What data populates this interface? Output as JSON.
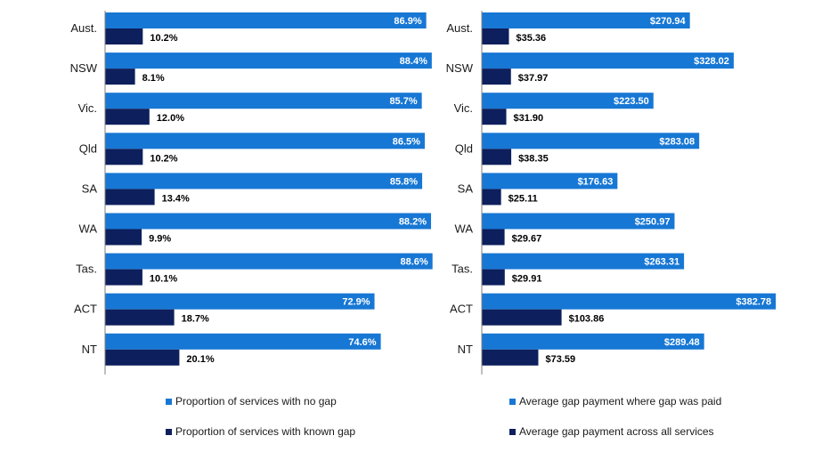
{
  "colors": {
    "series1": "#1777d4",
    "series2": "#0d1f5c",
    "axis": "#7f7f7f"
  },
  "chart_data": [
    {
      "type": "bar",
      "orientation": "horizontal",
      "categories": [
        "Aust.",
        "NSW",
        "Vic.",
        "Qld",
        "SA",
        "WA",
        "Tas.",
        "ACT",
        "NT"
      ],
      "series": [
        {
          "name": "Proportion of services with no gap",
          "values": [
            86.9,
            88.4,
            85.7,
            86.5,
            85.8,
            88.2,
            88.6,
            72.9,
            74.6
          ],
          "labels": [
            "86.9%",
            "88.4%",
            "85.7%",
            "86.5%",
            "85.8%",
            "88.2%",
            "88.6%",
            "72.9%",
            "74.6%"
          ]
        },
        {
          "name": "Proportion of services with known gap",
          "values": [
            10.2,
            8.1,
            12.0,
            10.2,
            13.4,
            9.9,
            10.1,
            18.7,
            20.1
          ],
          "labels": [
            "10.2%",
            "8.1%",
            "12.0%",
            "10.2%",
            "13.4%",
            "9.9%",
            "10.1%",
            "18.7%",
            "20.1%"
          ]
        }
      ],
      "xlim": [
        0,
        100
      ],
      "legend": "bottom"
    },
    {
      "type": "bar",
      "orientation": "horizontal",
      "categories": [
        "Aust.",
        "NSW",
        "Vic.",
        "Qld",
        "SA",
        "WA",
        "Tas.",
        "ACT",
        "NT"
      ],
      "series": [
        {
          "name": "Average gap payment where gap was paid",
          "values": [
            270.94,
            328.02,
            223.5,
            283.08,
            176.63,
            250.97,
            263.31,
            382.78,
            289.48
          ],
          "labels": [
            "$270.94",
            "$328.02",
            "$223.50",
            "$283.08",
            "$176.63",
            "$250.97",
            "$263.31",
            "$382.78",
            "$289.48"
          ]
        },
        {
          "name": "Average gap payment across all services",
          "values": [
            35.36,
            37.97,
            31.9,
            38.35,
            25.11,
            29.67,
            29.91,
            103.86,
            73.59
          ],
          "labels": [
            "$35.36",
            "$37.97",
            "$31.90",
            "$38.35",
            "$25.11",
            "$29.67",
            "$29.91",
            "$103.86",
            "$73.59"
          ]
        }
      ],
      "xlim": [
        0,
        400
      ],
      "legend": "bottom"
    }
  ]
}
